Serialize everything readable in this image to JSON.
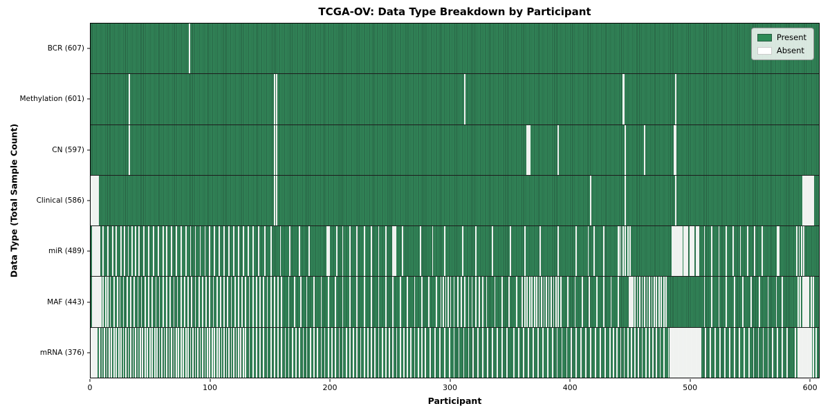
{
  "title": "TCGA-OV: Data Type Breakdown by Participant",
  "legend": {
    "present_label": "Present",
    "absent_label": "Absent"
  },
  "axes": {
    "x_label": "Participant",
    "y_label": "Data Type (Total Sample Count)",
    "x_ticks": [
      0,
      100,
      200,
      300,
      400,
      500,
      600
    ]
  },
  "colors": {
    "present_fill": "#33895a",
    "present_edge": "#265c40",
    "present_legend": "#2e8b57",
    "absent_fill": "#ffffff",
    "absent_edge": "#cfd6d1",
    "divider": "#1c1c1c"
  },
  "chart_data": {
    "type": "heatmap",
    "title": "TCGA-OV: Data Type Breakdown by Participant",
    "xlabel": "Participant",
    "ylabel": "Data Type (Total Sample Count)",
    "legend": [
      "Present",
      "Absent"
    ],
    "legend_position": "upper right",
    "n_participants": 608,
    "x_range": [
      0,
      608
    ],
    "rows": [
      {
        "label": "BCR",
        "count": 607,
        "display": "BCR (607)",
        "absent": [
          82
        ]
      },
      {
        "label": "Methylation",
        "count": 601,
        "display": "Methylation (601)",
        "absent": [
          32,
          153,
          155,
          312,
          444,
          445,
          488
        ]
      },
      {
        "label": "CN",
        "count": 597,
        "display": "CN (597)",
        "absent": [
          32,
          153,
          155,
          364,
          365,
          366,
          390,
          446,
          462,
          487,
          488
        ]
      },
      {
        "label": "Clinical",
        "count": 586,
        "display": "Clinical (586)",
        "absent": [
          0,
          1,
          2,
          3,
          4,
          5,
          6,
          153,
          155,
          417,
          446,
          488,
          594,
          595,
          596,
          597,
          598,
          599,
          600,
          601,
          602,
          603
        ]
      },
      {
        "label": "miR",
        "count": 489,
        "display": "miR (489)",
        "absent": [
          1,
          2,
          3,
          4,
          5,
          6,
          7,
          10,
          14,
          18,
          21,
          25,
          28,
          31,
          34,
          37,
          40,
          44,
          48,
          52,
          56,
          60,
          63,
          67,
          71,
          75,
          79,
          83,
          87,
          91,
          95,
          99,
          103,
          107,
          111,
          115,
          119,
          123,
          127,
          131,
          135,
          140,
          145,
          150,
          158,
          166,
          174,
          182,
          197,
          198,
          199,
          205,
          210,
          216,
          222,
          228,
          234,
          240,
          246,
          252,
          253,
          254,
          260,
          275,
          285,
          295,
          310,
          321,
          335,
          350,
          362,
          375,
          390,
          405,
          415,
          420,
          428,
          440,
          441,
          442,
          444,
          446,
          448,
          450,
          485,
          486,
          487,
          488,
          489,
          490,
          491,
          492,
          493,
          495,
          496,
          497,
          498,
          500,
          501,
          502,
          503,
          505,
          506,
          507,
          512,
          518,
          524,
          530,
          536,
          542,
          548,
          554,
          560,
          573,
          574,
          589,
          591,
          593,
          595
        ]
      },
      {
        "label": "MAF",
        "count": 443,
        "display": "MAF (443)",
        "absent": [
          1,
          2,
          3,
          4,
          5,
          6,
          7,
          8,
          10,
          12,
          14,
          16,
          19,
          22,
          24,
          27,
          30,
          33,
          36,
          39,
          42,
          45,
          48,
          51,
          54,
          57,
          60,
          63,
          66,
          69,
          72,
          75,
          78,
          81,
          84,
          87,
          90,
          93,
          96,
          99,
          102,
          105,
          108,
          111,
          114,
          117,
          120,
          123,
          126,
          129,
          132,
          135,
          138,
          141,
          144,
          147,
          150,
          153,
          156,
          159,
          165,
          170,
          175,
          180,
          186,
          192,
          198,
          204,
          210,
          216,
          222,
          228,
          234,
          240,
          246,
          252,
          258,
          264,
          270,
          276,
          282,
          288,
          292,
          294,
          296,
          298,
          300,
          303,
          306,
          309,
          312,
          315,
          318,
          321,
          324,
          327,
          330,
          337,
          343,
          349,
          355,
          360,
          362,
          364,
          366,
          368,
          370,
          372,
          374,
          376,
          378,
          380,
          382,
          384,
          386,
          388,
          390,
          392,
          398,
          404,
          410,
          416,
          422,
          428,
          434,
          440,
          449,
          450,
          451,
          452,
          454,
          456,
          458,
          460,
          462,
          464,
          466,
          468,
          470,
          472,
          474,
          476,
          478,
          480,
          512,
          518,
          524,
          530,
          537,
          544,
          551,
          558,
          565,
          572,
          577,
          590,
          592,
          594,
          595,
          596,
          597,
          598,
          599,
          601,
          603
        ]
      },
      {
        "label": "mRNA",
        "count": 376,
        "display": "mRNA (376)",
        "absent": [
          0,
          1,
          2,
          3,
          4,
          5,
          7,
          9,
          11,
          13,
          15,
          17,
          19,
          21,
          23,
          25,
          27,
          29,
          31,
          33,
          35,
          37,
          39,
          41,
          43,
          45,
          47,
          49,
          51,
          53,
          55,
          57,
          59,
          61,
          63,
          65,
          67,
          69,
          71,
          73,
          75,
          77,
          79,
          81,
          83,
          85,
          87,
          89,
          91,
          93,
          95,
          97,
          99,
          101,
          103,
          105,
          107,
          109,
          111,
          113,
          115,
          117,
          119,
          121,
          123,
          125,
          127,
          129,
          132,
          135,
          138,
          141,
          144,
          147,
          150,
          153,
          156,
          159,
          162,
          165,
          168,
          171,
          174,
          177,
          180,
          183,
          186,
          189,
          192,
          195,
          198,
          201,
          204,
          207,
          210,
          213,
          216,
          219,
          222,
          225,
          228,
          231,
          234,
          237,
          240,
          243,
          246,
          249,
          252,
          255,
          258,
          261,
          264,
          267,
          270,
          273,
          276,
          279,
          283,
          287,
          291,
          295,
          299,
          303,
          307,
          311,
          315,
          319,
          323,
          327,
          331,
          335,
          339,
          343,
          347,
          353,
          357,
          361,
          365,
          369,
          373,
          377,
          381,
          385,
          389,
          393,
          397,
          401,
          405,
          409,
          413,
          417,
          421,
          425,
          429,
          433,
          436,
          439,
          442,
          445,
          448,
          451,
          454,
          457,
          460,
          463,
          466,
          469,
          472,
          475,
          478,
          482,
          483,
          484,
          485,
          486,
          487,
          488,
          489,
          490,
          491,
          492,
          493,
          494,
          495,
          496,
          497,
          498,
          499,
          500,
          501,
          502,
          503,
          504,
          505,
          506,
          507,
          508,
          509,
          513,
          517,
          521,
          525,
          529,
          533,
          537,
          541,
          545,
          549,
          553,
          557,
          561,
          565,
          569,
          573,
          577,
          581,
          588,
          590,
          591,
          592,
          593,
          594,
          595,
          596,
          597,
          598,
          599,
          600,
          601,
          603,
          605
        ]
      }
    ]
  }
}
